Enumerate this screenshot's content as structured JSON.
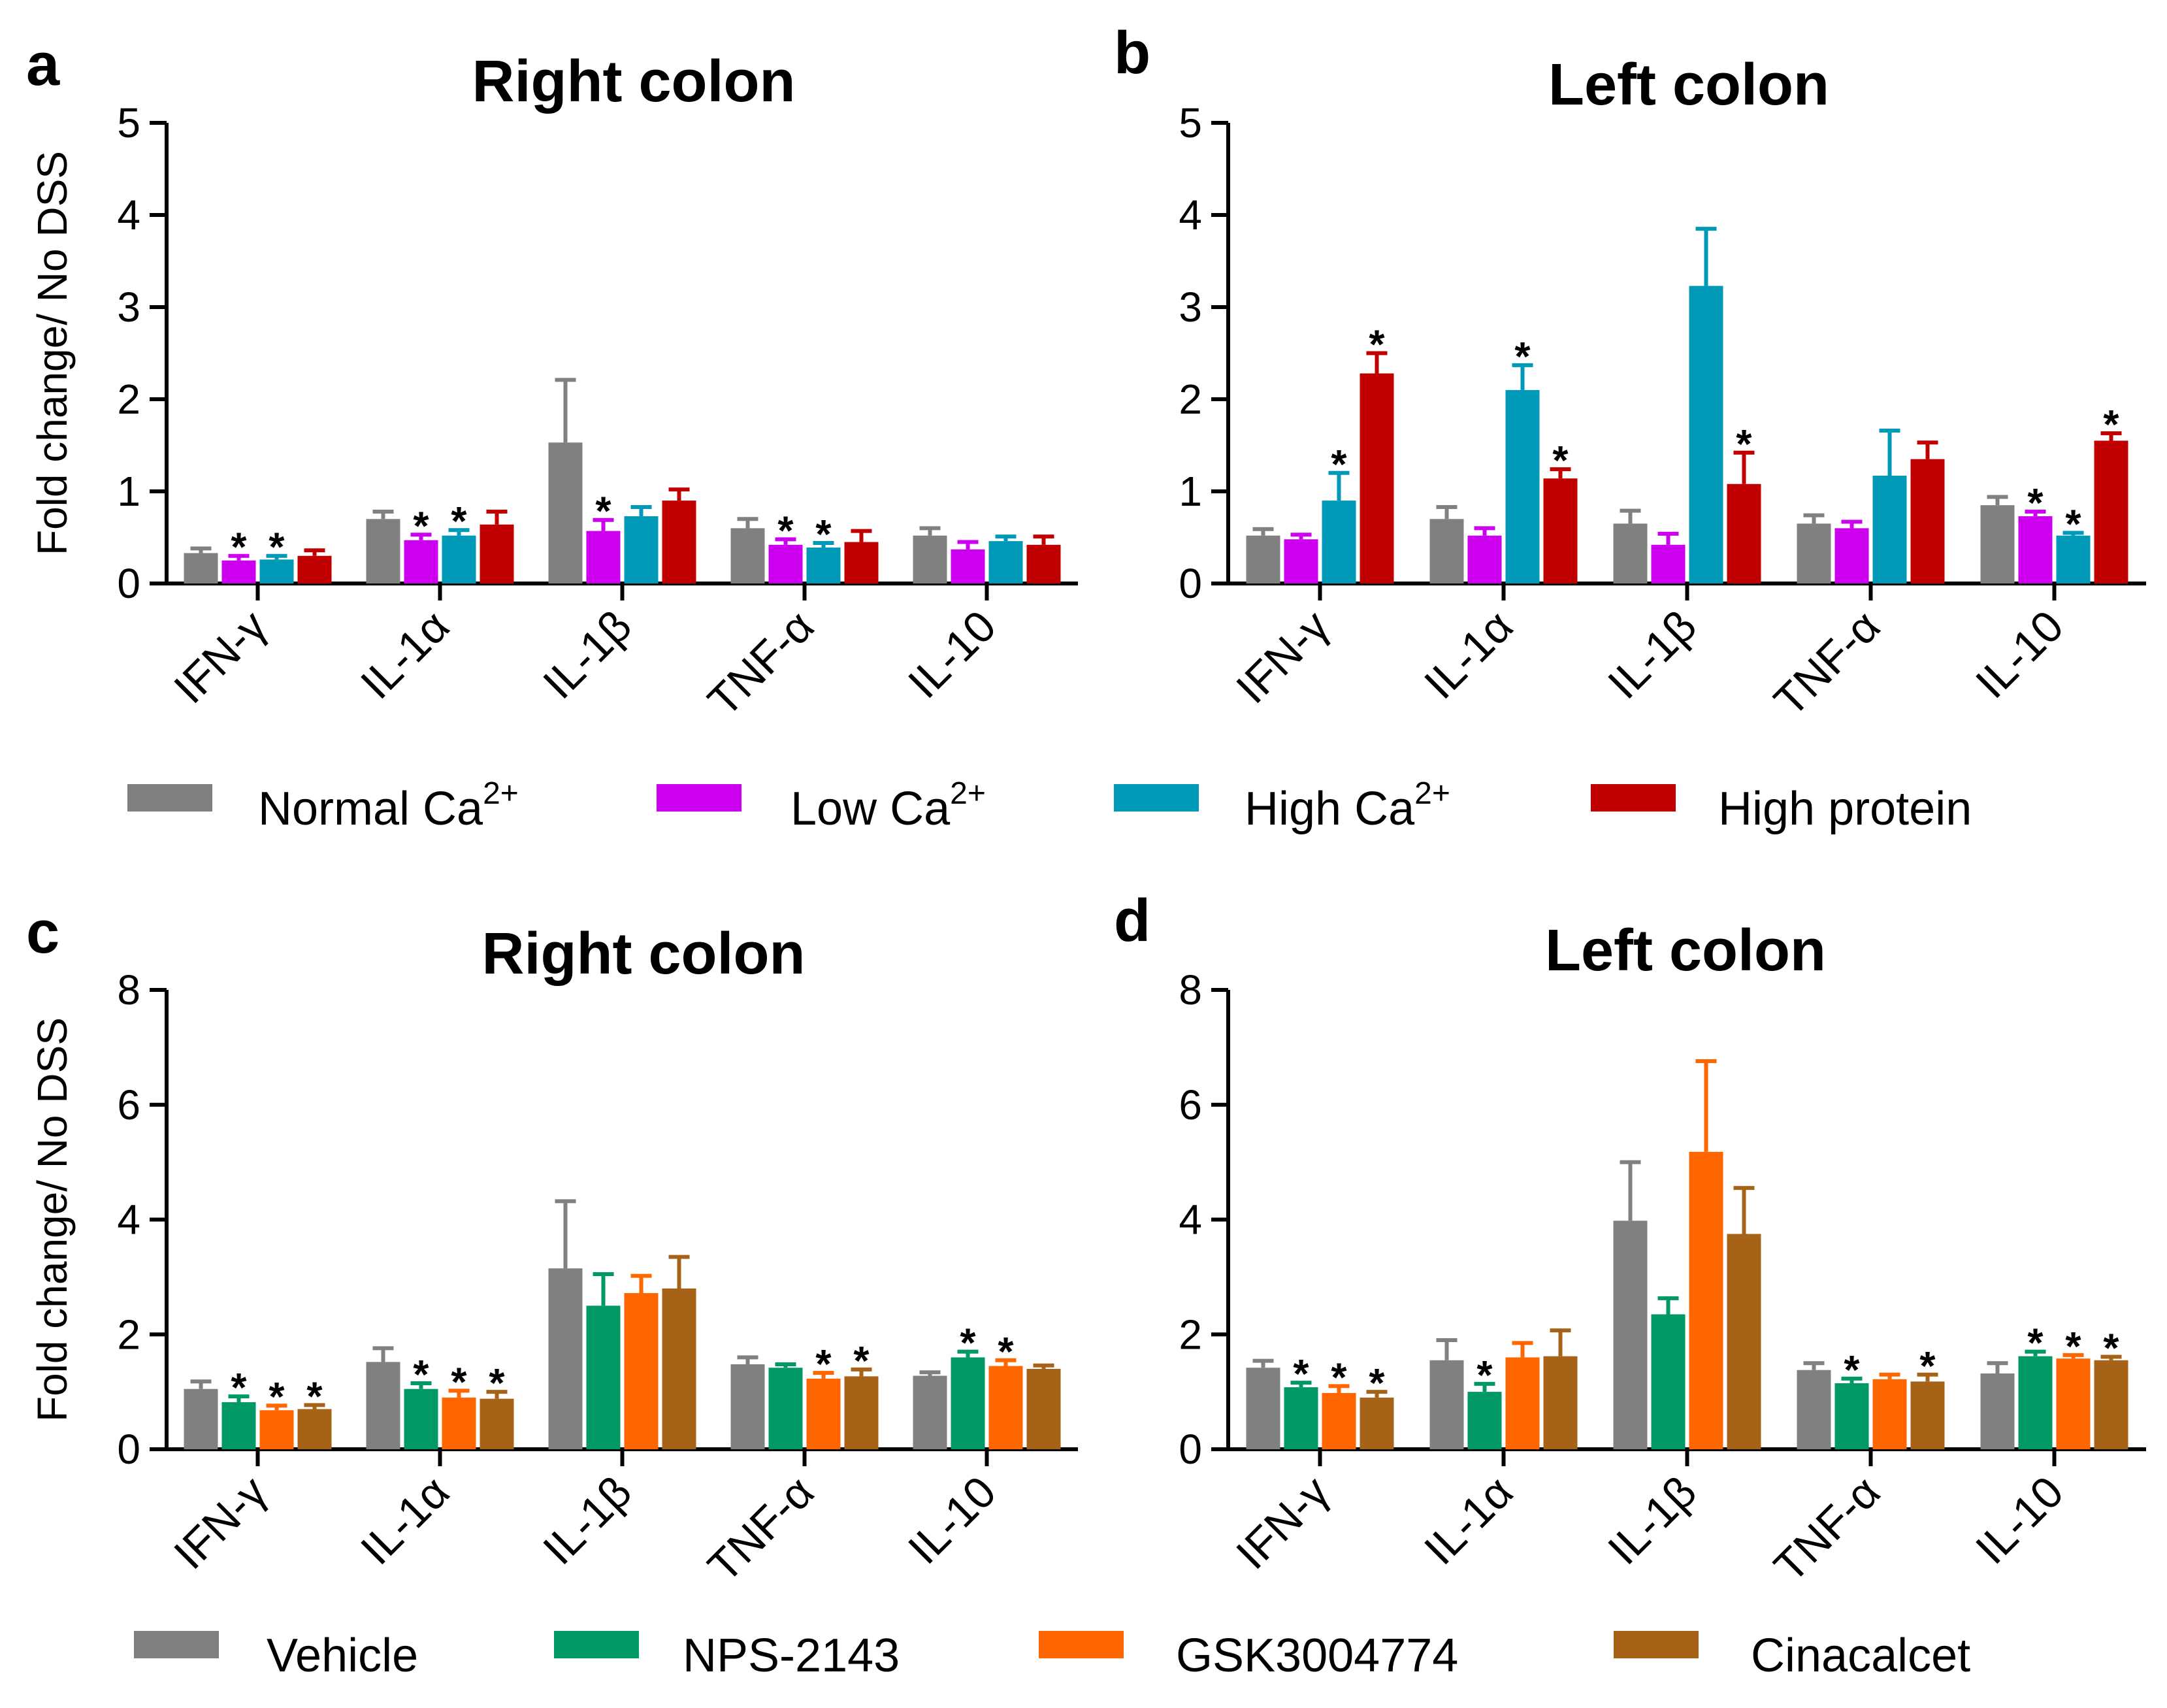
{
  "legends": [
    {
      "id": "diet",
      "items": [
        "Normal Ca",
        "Low Ca",
        "High Ca",
        "High protein"
      ],
      "superscripts": [
        "2+",
        "2+",
        "2+",
        ""
      ],
      "colors": [
        "#808080",
        "#cc00ee",
        "#0099b8",
        "#c00000"
      ]
    },
    {
      "id": "drug",
      "items": [
        "Vehicle",
        "NPS-2143",
        "GSK3004774",
        "Cinacalcet"
      ],
      "superscripts": [
        "",
        "",
        "",
        ""
      ],
      "colors": [
        "#808080",
        "#009966",
        "#ff6600",
        "#a66317"
      ]
    }
  ],
  "chart_data": [
    {
      "panel": "a",
      "type": "bar",
      "title": "Right colon",
      "ylabel": "Fold change/ No DSS",
      "xlabel": "",
      "ylim": [
        0,
        5
      ],
      "yticks": [
        "0",
        "1",
        "2",
        "3",
        "4",
        "5"
      ],
      "categories": [
        "IFN-γ",
        "IL-1α",
        "IL-1β",
        "TNF-α",
        "IL-10"
      ],
      "legend": "diet",
      "series": [
        {
          "name": "Normal Ca2+",
          "color": "#808080",
          "values": [
            0.33,
            0.7,
            1.53,
            0.6,
            0.52
          ],
          "errors": [
            0.05,
            0.08,
            0.68,
            0.1,
            0.08
          ],
          "sig": [
            false,
            false,
            false,
            false,
            false
          ]
        },
        {
          "name": "Low Ca2+",
          "color": "#cc00ee",
          "values": [
            0.25,
            0.47,
            0.57,
            0.42,
            0.37
          ],
          "errors": [
            0.05,
            0.06,
            0.12,
            0.06,
            0.08
          ],
          "sig": [
            true,
            true,
            true,
            true,
            false
          ]
        },
        {
          "name": "High Ca2+",
          "color": "#0099b8",
          "values": [
            0.26,
            0.52,
            0.73,
            0.39,
            0.46
          ],
          "errors": [
            0.04,
            0.06,
            0.1,
            0.05,
            0.05
          ],
          "sig": [
            true,
            true,
            false,
            true,
            false
          ]
        },
        {
          "name": "High protein",
          "color": "#c00000",
          "values": [
            0.3,
            0.64,
            0.9,
            0.45,
            0.42
          ],
          "errors": [
            0.06,
            0.14,
            0.12,
            0.12,
            0.09
          ],
          "sig": [
            false,
            false,
            false,
            false,
            false
          ]
        }
      ]
    },
    {
      "panel": "b",
      "type": "bar",
      "title": "Left colon",
      "ylabel": "",
      "xlabel": "",
      "ylim": [
        0,
        5
      ],
      "yticks": [
        "0",
        "1",
        "2",
        "3",
        "4",
        "5"
      ],
      "categories": [
        "IFN-γ",
        "IL-1α",
        "IL-1β",
        "TNF-α",
        "IL-10"
      ],
      "legend": "diet",
      "series": [
        {
          "name": "Normal Ca2+",
          "color": "#808080",
          "values": [
            0.52,
            0.7,
            0.65,
            0.65,
            0.85
          ],
          "errors": [
            0.07,
            0.13,
            0.14,
            0.09,
            0.09
          ],
          "sig": [
            false,
            false,
            false,
            false,
            false
          ]
        },
        {
          "name": "Low Ca2+",
          "color": "#cc00ee",
          "values": [
            0.48,
            0.52,
            0.42,
            0.6,
            0.73
          ],
          "errors": [
            0.05,
            0.08,
            0.12,
            0.07,
            0.05
          ],
          "sig": [
            false,
            false,
            false,
            false,
            true
          ]
        },
        {
          "name": "High Ca2+",
          "color": "#0099b8",
          "values": [
            0.9,
            2.1,
            3.23,
            1.17,
            0.52
          ],
          "errors": [
            0.3,
            0.27,
            0.62,
            0.49,
            0.03
          ],
          "sig": [
            true,
            true,
            false,
            false,
            true
          ]
        },
        {
          "name": "High protein",
          "color": "#c00000",
          "values": [
            2.28,
            1.14,
            1.08,
            1.35,
            1.55
          ],
          "errors": [
            0.22,
            0.1,
            0.34,
            0.18,
            0.08
          ],
          "sig": [
            true,
            true,
            true,
            false,
            true
          ]
        }
      ]
    },
    {
      "panel": "c",
      "type": "bar",
      "title": "Right colon",
      "ylabel": "Fold change/ No DSS",
      "xlabel": "",
      "ylim": [
        0,
        8
      ],
      "yticks": [
        "0",
        "2",
        "4",
        "6",
        "8"
      ],
      "categories": [
        "IFN-γ",
        "IL-1α",
        "IL-1β",
        "TNF-α",
        "IL-10"
      ],
      "legend": "drug",
      "series": [
        {
          "name": "Vehicle",
          "color": "#808080",
          "values": [
            1.05,
            1.52,
            3.15,
            1.48,
            1.28
          ],
          "errors": [
            0.13,
            0.24,
            1.17,
            0.12,
            0.06
          ],
          "sig": [
            false,
            false,
            false,
            false,
            false
          ]
        },
        {
          "name": "NPS-2143",
          "color": "#009966",
          "values": [
            0.82,
            1.05,
            2.5,
            1.42,
            1.6
          ],
          "errors": [
            0.1,
            0.1,
            0.55,
            0.06,
            0.1
          ],
          "sig": [
            true,
            true,
            false,
            false,
            true
          ]
        },
        {
          "name": "GSK3004774",
          "color": "#ff6600",
          "values": [
            0.68,
            0.9,
            2.72,
            1.23,
            1.45
          ],
          "errors": [
            0.08,
            0.12,
            0.3,
            0.1,
            0.1
          ],
          "sig": [
            true,
            true,
            false,
            true,
            true
          ]
        },
        {
          "name": "Cinacalcet",
          "color": "#a66317",
          "values": [
            0.7,
            0.88,
            2.8,
            1.27,
            1.4
          ],
          "errors": [
            0.07,
            0.12,
            0.55,
            0.12,
            0.06
          ],
          "sig": [
            true,
            true,
            false,
            true,
            false
          ]
        }
      ]
    },
    {
      "panel": "d",
      "type": "bar",
      "title": "Left colon",
      "ylabel": "",
      "xlabel": "",
      "ylim": [
        0,
        8
      ],
      "yticks": [
        "0",
        "2",
        "4",
        "6",
        "8"
      ],
      "categories": [
        "IFN-γ",
        "IL-1α",
        "IL-1β",
        "TNF-α",
        "IL-10"
      ],
      "legend": "drug",
      "series": [
        {
          "name": "Vehicle",
          "color": "#808080",
          "values": [
            1.42,
            1.55,
            3.98,
            1.38,
            1.32
          ],
          "errors": [
            0.12,
            0.35,
            1.02,
            0.12,
            0.18
          ],
          "sig": [
            false,
            false,
            false,
            false,
            false
          ]
        },
        {
          "name": "NPS-2143",
          "color": "#009966",
          "values": [
            1.08,
            1.0,
            2.35,
            1.15,
            1.62
          ],
          "errors": [
            0.08,
            0.14,
            0.28,
            0.08,
            0.08
          ],
          "sig": [
            true,
            true,
            false,
            true,
            true
          ]
        },
        {
          "name": "GSK3004774",
          "color": "#ff6600",
          "values": [
            0.98,
            1.6,
            5.18,
            1.22,
            1.58
          ],
          "errors": [
            0.12,
            0.25,
            1.58,
            0.08,
            0.06
          ],
          "sig": [
            true,
            false,
            false,
            false,
            true
          ]
        },
        {
          "name": "Cinacalcet",
          "color": "#a66317",
          "values": [
            0.9,
            1.62,
            3.75,
            1.18,
            1.55
          ],
          "errors": [
            0.1,
            0.45,
            0.8,
            0.12,
            0.06
          ],
          "sig": [
            true,
            false,
            false,
            true,
            true
          ]
        }
      ]
    }
  ]
}
